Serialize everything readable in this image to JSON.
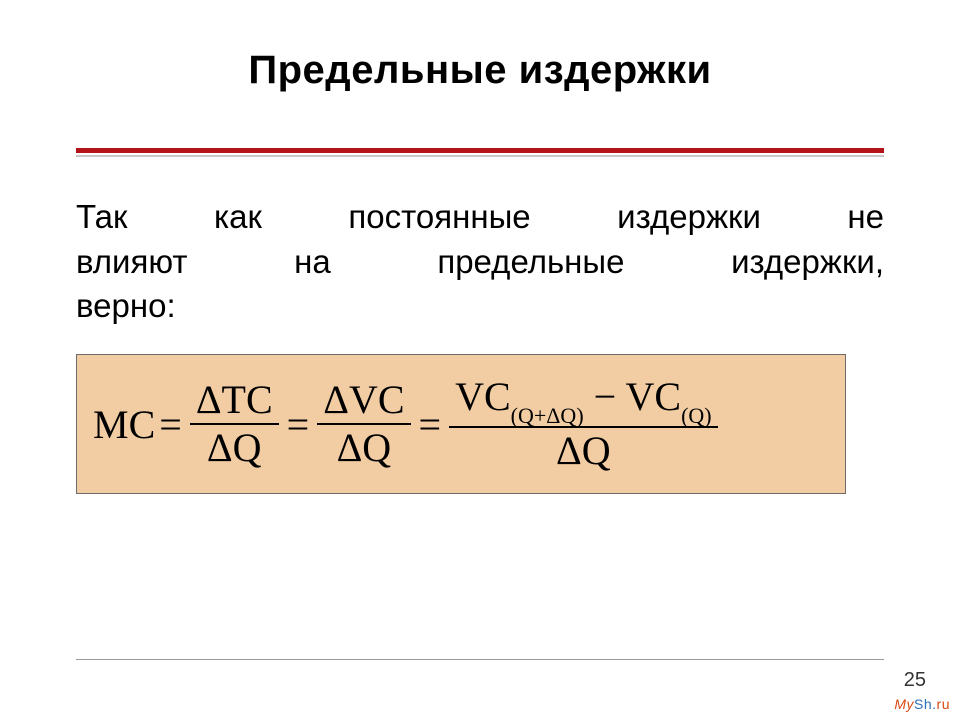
{
  "colors": {
    "title": "#000000",
    "body": "#000000",
    "rule_red": "#b41418",
    "rule_grey": "#c7c7c7",
    "formula_bg": "#f2cda3",
    "formula_border": "#6b6b6b",
    "footer_rule": "#9a9a9a",
    "page_num": "#333333",
    "wm_my": "#d84a12",
    "wm_sh": "#2a6fb3",
    "wm_ru": "#d84a12"
  },
  "typography": {
    "title_fontsize": 40,
    "body_fontsize": 33,
    "formula_fontsize": 40
  },
  "title": "Предельные издержки",
  "body": {
    "line1": "Так как постоянные издержки не",
    "line2": "влияют на предельные издержки,",
    "line3": "верно:"
  },
  "formula": {
    "lhs": "MC",
    "eq": "=",
    "f1": {
      "num": "ΔTC",
      "den": "ΔQ"
    },
    "f2": {
      "num": "ΔVC",
      "den": "ΔQ"
    },
    "f3": {
      "num_a": "VC",
      "num_a_sub": "(Q+ΔQ)",
      "minus": "−",
      "num_b": "VC",
      "num_b_sub": "(Q)",
      "den": "ΔQ"
    }
  },
  "page_number": "25",
  "watermark": {
    "m": "M",
    "y": "y",
    "sh": "Sh",
    "dot": ".",
    "ru": "ru"
  }
}
